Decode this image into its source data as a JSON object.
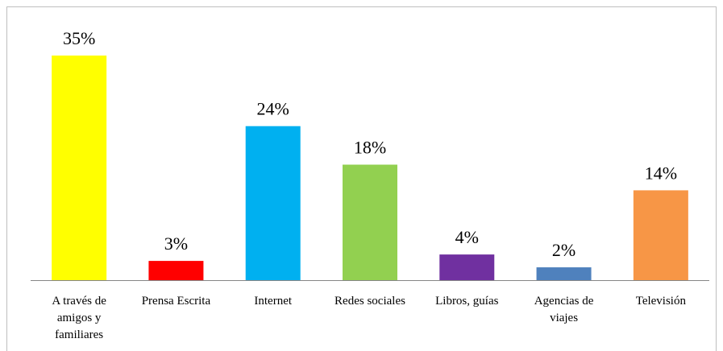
{
  "chart_data": {
    "type": "bar",
    "title": "",
    "xlabel": "",
    "ylabel": "",
    "categories": [
      [
        "A través de",
        "amigos y",
        "familiares"
      ],
      [
        "Prensa Escrita"
      ],
      [
        "Internet"
      ],
      [
        "Redes sociales"
      ],
      [
        "Libros, guías"
      ],
      [
        "Agencias de",
        "viajes"
      ],
      [
        "Televisión"
      ]
    ],
    "values": [
      35,
      3,
      24,
      18,
      4,
      2,
      14
    ],
    "data_labels": [
      "35%",
      "3%",
      "24%",
      "18%",
      "4%",
      "2%",
      "14%"
    ],
    "colors": [
      "#FFFF00",
      "#FF0000",
      "#00B0F0",
      "#92D050",
      "#7030A0",
      "#4F81BD",
      "#F79646"
    ],
    "ylim": [
      0,
      35
    ],
    "grid": false,
    "legend": "none"
  }
}
